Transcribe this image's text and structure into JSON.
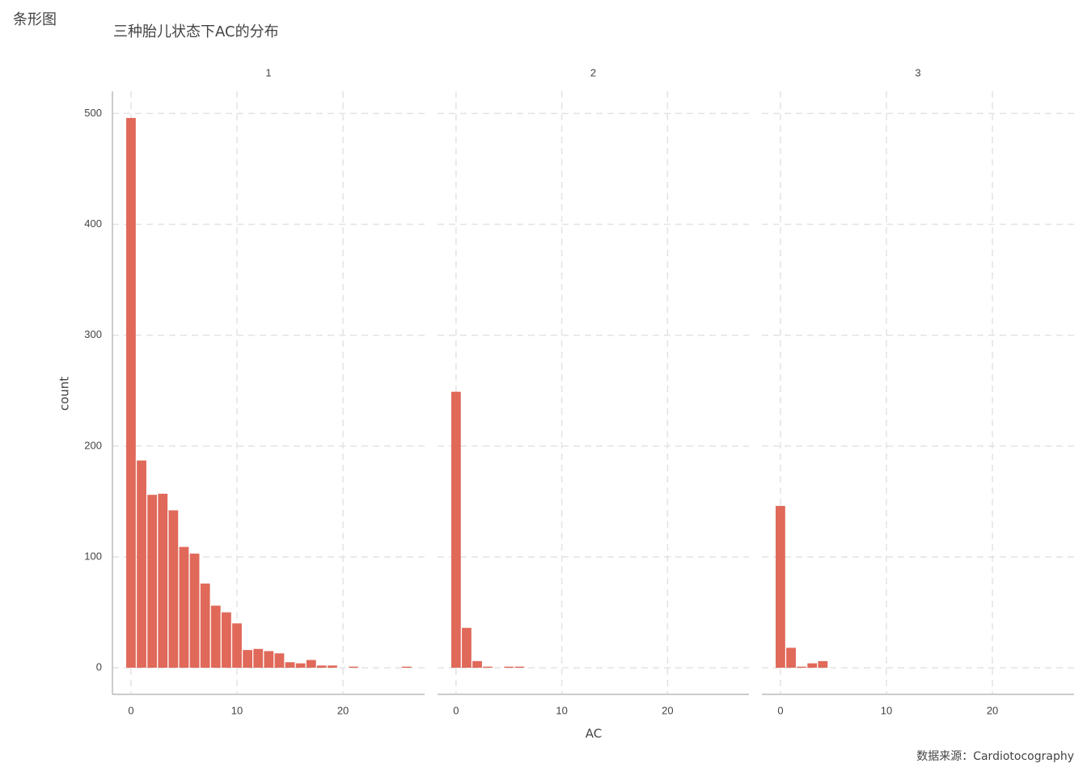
{
  "header": "条形图",
  "chart_data": {
    "type": "bar",
    "title": "三种胎儿状态下AC的分布",
    "x_label": "AC",
    "y_label": "count",
    "caption": "数据来源：Cardiotocography",
    "x": [
      0,
      1,
      2,
      3,
      4,
      5,
      6,
      7,
      8,
      9,
      10,
      11,
      12,
      13,
      14,
      15,
      16,
      17,
      18,
      19,
      20,
      21,
      22,
      23,
      24,
      25,
      26
    ],
    "series": [
      {
        "name": "1",
        "color": "#e0695a",
        "values": [
          496,
          187,
          156,
          157,
          142,
          109,
          103,
          76,
          56,
          50,
          40,
          16,
          17,
          15,
          13,
          5,
          4,
          7,
          2,
          2,
          0,
          1,
          0,
          0,
          0,
          0,
          1
        ]
      },
      {
        "name": "2",
        "color": "#e0695a",
        "values": [
          249,
          36,
          6,
          1,
          0,
          1,
          1,
          0,
          0,
          0,
          0,
          0,
          0,
          0,
          0,
          0,
          0,
          0,
          0,
          0,
          0,
          0,
          0,
          0,
          0,
          0,
          0
        ]
      },
      {
        "name": "3",
        "color": "#e0695a",
        "values": [
          146,
          18,
          1,
          4,
          6,
          0,
          0,
          0,
          0,
          0,
          0,
          0,
          0,
          0,
          0,
          0,
          0,
          0,
          0,
          0,
          0,
          0,
          0,
          0,
          0,
          0,
          0
        ]
      }
    ],
    "xlim": [
      -1.75,
      27.7
    ],
    "xticks": [
      0,
      10,
      20
    ],
    "ylim": [
      -24,
      520
    ],
    "yticks": [
      0,
      100,
      200,
      300,
      400,
      500
    ],
    "grid": true
  }
}
